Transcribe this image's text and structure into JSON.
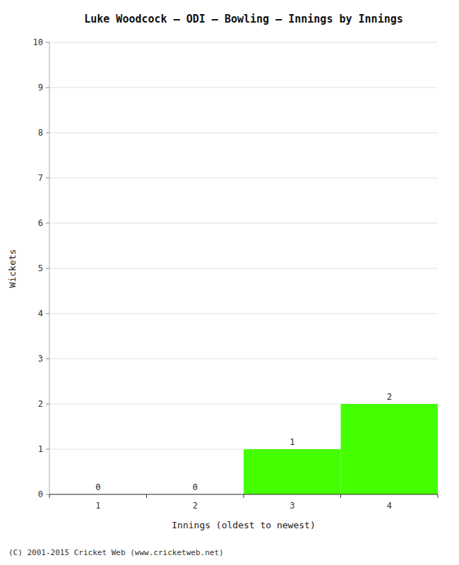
{
  "chart_data": {
    "type": "bar",
    "title": "Luke Woodcock – ODI – Bowling – Innings by Innings",
    "x_label": "Innings (oldest to newest)",
    "y_label": "Wickets",
    "categories": [
      "1",
      "2",
      "3",
      "4"
    ],
    "values": [
      0,
      0,
      1,
      2
    ],
    "colors": [
      "#ffffff",
      "#ffffff",
      "#44ff00",
      "#44ff00"
    ],
    "ylim": [
      0,
      10
    ],
    "yticks": [
      0,
      1,
      2,
      3,
      4,
      5,
      6,
      7,
      8,
      9,
      10
    ],
    "grid": true,
    "data_labels": true,
    "annotations": [
      "(C) 2001-2015 Cricket Web (www.cricketweb.net)"
    ]
  }
}
